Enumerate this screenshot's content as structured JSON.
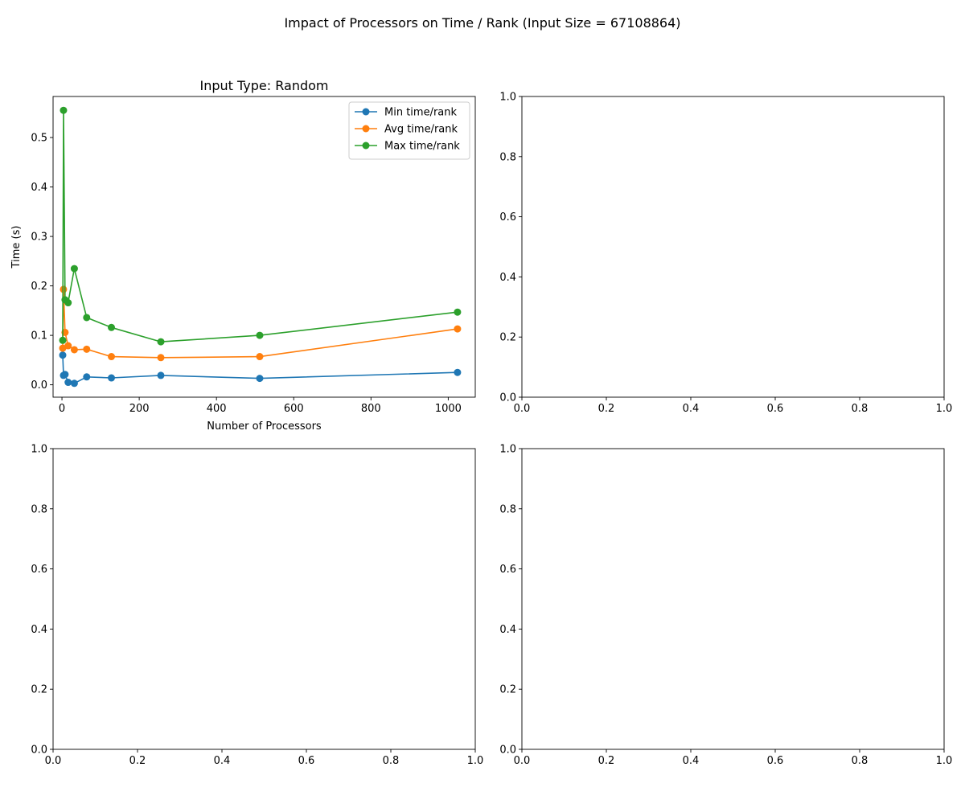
{
  "figure": {
    "title": "Impact of Processors on Time / Rank (Input Size = 67108864)"
  },
  "chart_data": [
    {
      "type": "line",
      "title": "Input Type: Random",
      "xlabel": "Number of Processors",
      "ylabel": "Time (s)",
      "xlim": [
        -23,
        1070
      ],
      "ylim": [
        -0.025,
        0.583
      ],
      "xticks": [
        0,
        200,
        400,
        600,
        800,
        1000
      ],
      "yticks": [
        0.0,
        0.1,
        0.2,
        0.3,
        0.4,
        0.5
      ],
      "xtick_labels": [
        "0",
        "200",
        "400",
        "600",
        "800",
        "1000"
      ],
      "ytick_labels": [
        "0.0",
        "0.1",
        "0.2",
        "0.3",
        "0.4",
        "0.5"
      ],
      "grid": false,
      "legend": "top-right",
      "x": [
        2,
        4,
        8,
        16,
        32,
        64,
        128,
        256,
        512,
        1024
      ],
      "series": [
        {
          "name": "Min time/rank",
          "color": "#1f77b4",
          "values": [
            0.06,
            0.019,
            0.021,
            0.005,
            0.003,
            0.016,
            0.014,
            0.019,
            0.013,
            0.025
          ]
        },
        {
          "name": "Avg time/rank",
          "color": "#ff7f0e",
          "values": [
            0.074,
            0.193,
            0.106,
            0.079,
            0.071,
            0.072,
            0.057,
            0.055,
            0.057,
            0.113
          ]
        },
        {
          "name": "Max time/rank",
          "color": "#2ca02c",
          "values": [
            0.09,
            0.555,
            0.172,
            0.166,
            0.235,
            0.136,
            0.116,
            0.087,
            0.1,
            0.147
          ]
        }
      ]
    },
    {
      "type": "line",
      "title": "",
      "xlim": [
        0,
        1
      ],
      "ylim": [
        0,
        1
      ],
      "xticks": [
        0.0,
        0.2,
        0.4,
        0.6,
        0.8,
        1.0
      ],
      "yticks": [
        0.0,
        0.2,
        0.4,
        0.6,
        0.8,
        1.0
      ],
      "xtick_labels": [
        "0.0",
        "0.2",
        "0.4",
        "0.6",
        "0.8",
        "1.0"
      ],
      "ytick_labels": [
        "0.0",
        "0.2",
        "0.4",
        "0.6",
        "0.8",
        "1.0"
      ],
      "series": []
    },
    {
      "type": "line",
      "title": "",
      "xlim": [
        0,
        1
      ],
      "ylim": [
        0,
        1
      ],
      "xticks": [
        0.0,
        0.2,
        0.4,
        0.6,
        0.8,
        1.0
      ],
      "yticks": [
        0.0,
        0.2,
        0.4,
        0.6,
        0.8,
        1.0
      ],
      "xtick_labels": [
        "0.0",
        "0.2",
        "0.4",
        "0.6",
        "0.8",
        "1.0"
      ],
      "ytick_labels": [
        "0.0",
        "0.2",
        "0.4",
        "0.6",
        "0.8",
        "1.0"
      ],
      "series": []
    },
    {
      "type": "line",
      "title": "",
      "xlim": [
        0,
        1
      ],
      "ylim": [
        0,
        1
      ],
      "xticks": [
        0.0,
        0.2,
        0.4,
        0.6,
        0.8,
        1.0
      ],
      "yticks": [
        0.0,
        0.2,
        0.4,
        0.6,
        0.8,
        1.0
      ],
      "xtick_labels": [
        "0.0",
        "0.2",
        "0.4",
        "0.6",
        "0.8",
        "1.0"
      ],
      "ytick_labels": [
        "0.0",
        "0.2",
        "0.4",
        "0.6",
        "0.8",
        "1.0"
      ],
      "series": []
    }
  ]
}
